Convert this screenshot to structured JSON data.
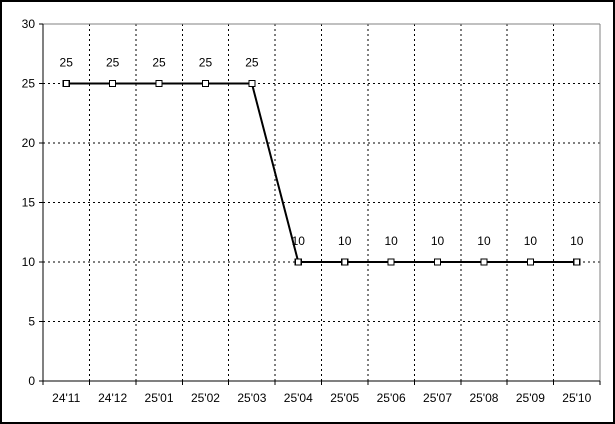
{
  "window": {
    "background": "#ffffff",
    "outer_border_color": "#000000"
  },
  "chart_data": {
    "type": "line",
    "title": "",
    "xlabel": "",
    "ylabel": "",
    "categories": [
      "24'11",
      "24'12",
      "25'01",
      "25'02",
      "25'03",
      "25'04",
      "25'05",
      "25'06",
      "25'07",
      "25'08",
      "25'09",
      "25'10"
    ],
    "values": [
      25,
      25,
      25,
      25,
      25,
      10,
      10,
      10,
      10,
      10,
      10,
      10
    ],
    "show_data_labels": true,
    "data_label_texts": [
      "25",
      "25",
      "25",
      "25",
      "25",
      "10",
      "10",
      "10",
      "10",
      "10",
      "10",
      "10"
    ],
    "ylim": [
      0,
      30
    ],
    "y_ticks": [
      0,
      5,
      10,
      15,
      20,
      25,
      30
    ],
    "y_tick_labels": [
      "0",
      "5",
      "10",
      "15",
      "20",
      "25",
      "30"
    ],
    "grid": true,
    "grid_style": "dashed",
    "legend": "none",
    "colors": {
      "series_line": "#000000",
      "marker_stroke": "#000000",
      "marker_fill": "#ffffff",
      "grid": "#000000",
      "axis": "#000000",
      "plot_border": "#808080",
      "label_text": "#000000"
    }
  }
}
